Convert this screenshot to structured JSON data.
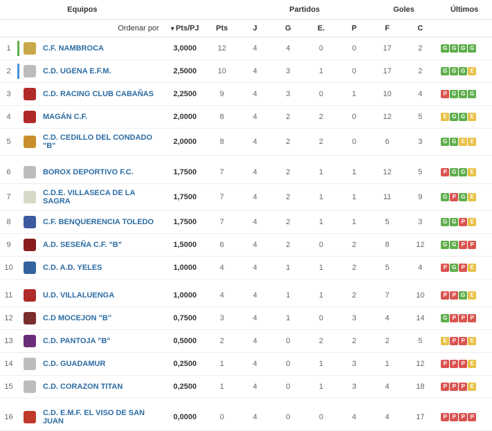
{
  "headers": {
    "equipos": "Equipos",
    "partidos": "Partidos",
    "goles": "Goles",
    "ultimos": "Últimos",
    "ordenar": "Ordenar por",
    "ptspj": "Pts/PJ",
    "pts": "Pts",
    "j": "J",
    "g": "G",
    "e": "E.",
    "p": "P",
    "f": "F",
    "c": "C"
  },
  "colors": {
    "link": "#2b6ca3",
    "win": "#5fae4c",
    "draw": "#e8c147",
    "loss": "#d9534f",
    "bar1": "#5fae4c",
    "bar2": "#4a90d9"
  },
  "groups": [
    [
      {
        "rank": 1,
        "bar": "#5fae4c",
        "crest": "#c9a84a",
        "team": "C.F. NAMBROCA",
        "ptspj": "3,0000",
        "pts": 12,
        "j": 4,
        "g": 4,
        "e": 0,
        "p": 0,
        "f": 17,
        "c": 2,
        "last": [
          "G",
          "G",
          "G",
          "G"
        ]
      },
      {
        "rank": 2,
        "bar": "#4a90d9",
        "crest": "#bcbcbc",
        "team": "C.D. UGENA E.F.M.",
        "ptspj": "2,5000",
        "pts": 10,
        "j": 4,
        "g": 3,
        "e": 1,
        "p": 0,
        "f": 17,
        "c": 2,
        "last": [
          "G",
          "G",
          "G",
          "E"
        ]
      },
      {
        "rank": 3,
        "bar": "",
        "crest": "#b02a2a",
        "team": "C.D. RACING CLUB CABAÑAS",
        "ptspj": "2,2500",
        "pts": 9,
        "j": 4,
        "g": 3,
        "e": 0,
        "p": 1,
        "f": 10,
        "c": 4,
        "last": [
          "P",
          "G",
          "G",
          "G"
        ]
      },
      {
        "rank": 4,
        "bar": "",
        "crest": "#b02a2a",
        "team": "MAGÁN C.F.",
        "ptspj": "2,0000",
        "pts": 8,
        "j": 4,
        "g": 2,
        "e": 2,
        "p": 0,
        "f": 12,
        "c": 5,
        "last": [
          "E",
          "G",
          "G",
          "E"
        ]
      },
      {
        "rank": 5,
        "bar": "",
        "crest": "#c98f2a",
        "team": "C.D. CEDILLO DEL CONDADO \"B\"",
        "ptspj": "2,0000",
        "pts": 8,
        "j": 4,
        "g": 2,
        "e": 2,
        "p": 0,
        "f": 6,
        "c": 3,
        "last": [
          "G",
          "G",
          "E",
          "E"
        ]
      }
    ],
    [
      {
        "rank": 6,
        "bar": "",
        "crest": "#bcbcbc",
        "team": "BOROX DEPORTIVO F.C.",
        "ptspj": "1,7500",
        "pts": 7,
        "j": 4,
        "g": 2,
        "e": 1,
        "p": 1,
        "f": 12,
        "c": 5,
        "last": [
          "P",
          "G",
          "G",
          "E"
        ]
      },
      {
        "rank": 7,
        "bar": "",
        "crest": "#d8d8c8",
        "team": "C.D.E. VILLASECA DE LA SAGRA",
        "ptspj": "1,7500",
        "pts": 7,
        "j": 4,
        "g": 2,
        "e": 1,
        "p": 1,
        "f": 11,
        "c": 9,
        "last": [
          "G",
          "P",
          "G",
          "E"
        ]
      },
      {
        "rank": 8,
        "bar": "",
        "crest": "#3b5aa0",
        "team": "C.F. BENQUERENCIA TOLEDO",
        "ptspj": "1,7500",
        "pts": 7,
        "j": 4,
        "g": 2,
        "e": 1,
        "p": 1,
        "f": 5,
        "c": 3,
        "last": [
          "G",
          "G",
          "P",
          "E"
        ]
      },
      {
        "rank": 9,
        "bar": "",
        "crest": "#8a1c1c",
        "team": "A.D. SESEÑA C.F. \"B\"",
        "ptspj": "1,5000",
        "pts": 6,
        "j": 4,
        "g": 2,
        "e": 0,
        "p": 2,
        "f": 8,
        "c": 12,
        "last": [
          "G",
          "G",
          "P",
          "P"
        ]
      },
      {
        "rank": 10,
        "bar": "",
        "crest": "#3563a0",
        "team": "C.D. A.D. YELES",
        "ptspj": "1,0000",
        "pts": 4,
        "j": 4,
        "g": 1,
        "e": 1,
        "p": 2,
        "f": 5,
        "c": 4,
        "last": [
          "P",
          "G",
          "P",
          "E"
        ]
      }
    ],
    [
      {
        "rank": 11,
        "bar": "",
        "crest": "#b02a2a",
        "team": "U.D. VILLALUENGA",
        "ptspj": "1,0000",
        "pts": 4,
        "j": 4,
        "g": 1,
        "e": 1,
        "p": 2,
        "f": 7,
        "c": 10,
        "last": [
          "P",
          "P",
          "G",
          "E"
        ]
      },
      {
        "rank": 12,
        "bar": "",
        "crest": "#7a2d2d",
        "team": "C.D MOCEJON \"B\"",
        "ptspj": "0,7500",
        "pts": 3,
        "j": 4,
        "g": 1,
        "e": 0,
        "p": 3,
        "f": 4,
        "c": 14,
        "last": [
          "G",
          "P",
          "P",
          "P"
        ]
      },
      {
        "rank": 13,
        "bar": "",
        "crest": "#6a2d7a",
        "team": "C.D. PANTOJA \"B\"",
        "ptspj": "0,5000",
        "pts": 2,
        "j": 4,
        "g": 0,
        "e": 2,
        "p": 2,
        "f": 2,
        "c": 5,
        "last": [
          "E",
          "P",
          "P",
          "E"
        ]
      },
      {
        "rank": 14,
        "bar": "",
        "crest": "#bcbcbc",
        "team": "C.D. GUADAMUR",
        "ptspj": "0,2500",
        "pts": 1,
        "j": 4,
        "g": 0,
        "e": 1,
        "p": 3,
        "f": 1,
        "c": 12,
        "last": [
          "P",
          "P",
          "P",
          "E"
        ]
      },
      {
        "rank": 15,
        "bar": "",
        "crest": "#bcbcbc",
        "team": "C.D. CORAZON TITAN",
        "ptspj": "0,2500",
        "pts": 1,
        "j": 4,
        "g": 0,
        "e": 1,
        "p": 3,
        "f": 4,
        "c": 18,
        "last": [
          "P",
          "P",
          "P",
          "E"
        ]
      }
    ],
    [
      {
        "rank": 16,
        "bar": "",
        "crest": "#c0392b",
        "team": "C.D. E.M.F. EL VISO DE SAN JUAN",
        "ptspj": "0,0000",
        "pts": 0,
        "j": 4,
        "g": 0,
        "e": 0,
        "p": 4,
        "f": 4,
        "c": 17,
        "last": [
          "P",
          "P",
          "P",
          "P"
        ]
      }
    ]
  ]
}
